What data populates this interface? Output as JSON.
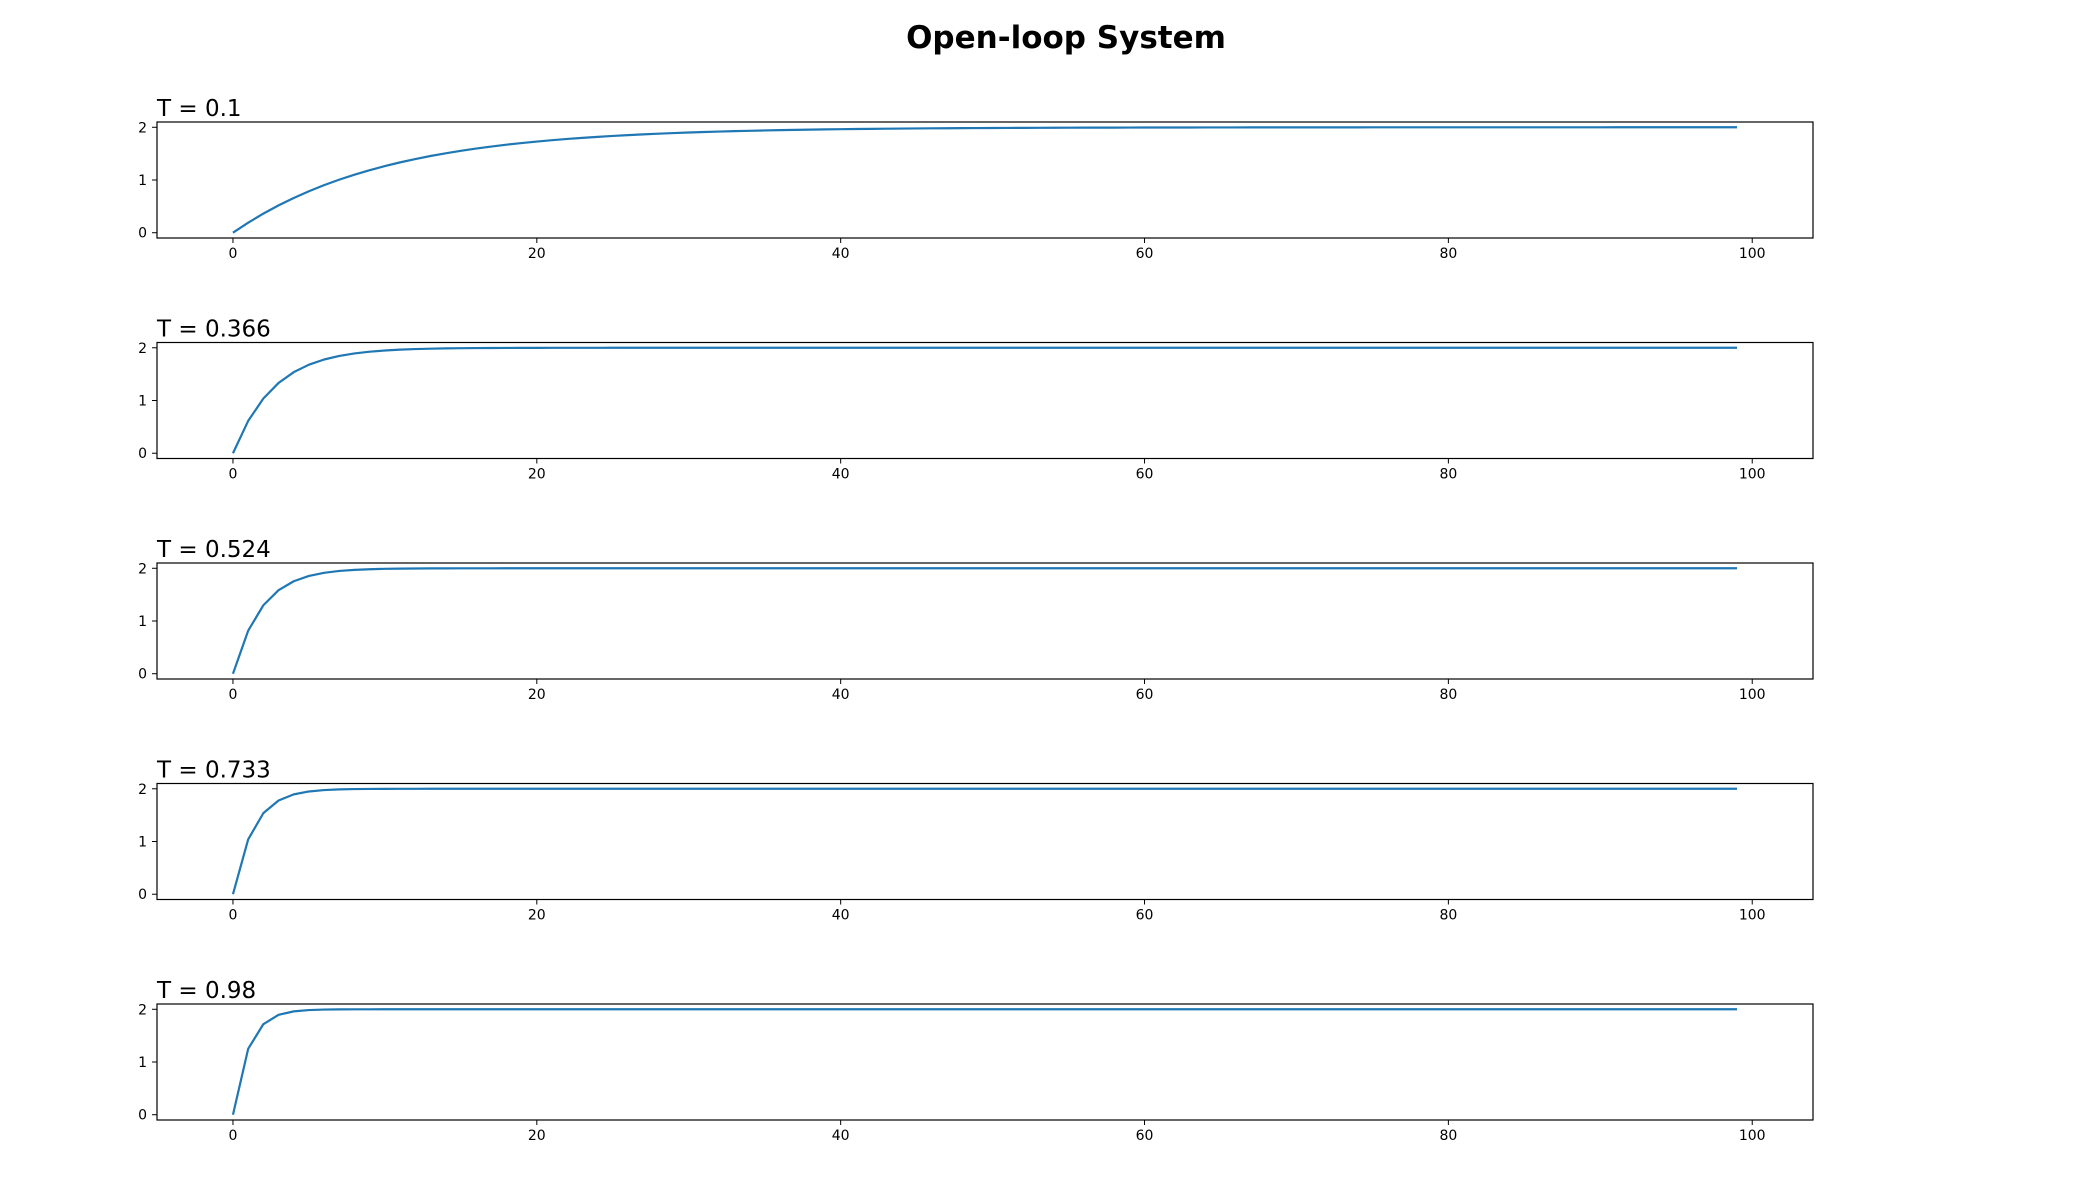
{
  "figure": {
    "title": "Open-loop System"
  },
  "chart_data": [
    {
      "type": "line",
      "title": "T = 0.1",
      "xlabel": "",
      "ylabel": "",
      "xlim": [
        -5,
        104
      ],
      "ylim": [
        -0.1,
        2.1
      ],
      "x_ticks": [
        0,
        20,
        40,
        60,
        80,
        100
      ],
      "y_ticks": [
        0,
        1,
        2
      ],
      "grid": false,
      "color": "#1f77b4",
      "series": [
        {
          "model": "first_order_step",
          "gain": 2,
          "T": 0.1,
          "x_start": 0,
          "x_end": 99
        }
      ]
    },
    {
      "type": "line",
      "title": "T = 0.366",
      "xlabel": "",
      "ylabel": "",
      "xlim": [
        -5,
        104
      ],
      "ylim": [
        -0.1,
        2.1
      ],
      "x_ticks": [
        0,
        20,
        40,
        60,
        80,
        100
      ],
      "y_ticks": [
        0,
        1,
        2
      ],
      "grid": false,
      "color": "#1f77b4",
      "series": [
        {
          "model": "first_order_step",
          "gain": 2,
          "T": 0.366,
          "x_start": 0,
          "x_end": 99
        }
      ]
    },
    {
      "type": "line",
      "title": "T = 0.524",
      "xlabel": "",
      "ylabel": "",
      "xlim": [
        -5,
        104
      ],
      "ylim": [
        -0.1,
        2.1
      ],
      "x_ticks": [
        0,
        20,
        40,
        60,
        80,
        100
      ],
      "y_ticks": [
        0,
        1,
        2
      ],
      "grid": false,
      "color": "#1f77b4",
      "series": [
        {
          "model": "first_order_step",
          "gain": 2,
          "T": 0.524,
          "x_start": 0,
          "x_end": 99
        }
      ]
    },
    {
      "type": "line",
      "title": "T = 0.733",
      "xlabel": "",
      "ylabel": "",
      "xlim": [
        -5,
        104
      ],
      "ylim": [
        -0.1,
        2.1
      ],
      "x_ticks": [
        0,
        20,
        40,
        60,
        80,
        100
      ],
      "y_ticks": [
        0,
        1,
        2
      ],
      "grid": false,
      "color": "#1f77b4",
      "series": [
        {
          "model": "first_order_step",
          "gain": 2,
          "T": 0.733,
          "x_start": 0,
          "x_end": 99
        }
      ]
    },
    {
      "type": "line",
      "title": "T = 0.98",
      "xlabel": "",
      "ylabel": "",
      "xlim": [
        -5,
        104
      ],
      "ylim": [
        -0.1,
        2.1
      ],
      "x_ticks": [
        0,
        20,
        40,
        60,
        80,
        100
      ],
      "y_ticks": [
        0,
        1,
        2
      ],
      "grid": false,
      "color": "#1f77b4",
      "series": [
        {
          "model": "first_order_step",
          "gain": 2,
          "T": 0.98,
          "x_start": 0,
          "x_end": 99
        }
      ]
    }
  ]
}
